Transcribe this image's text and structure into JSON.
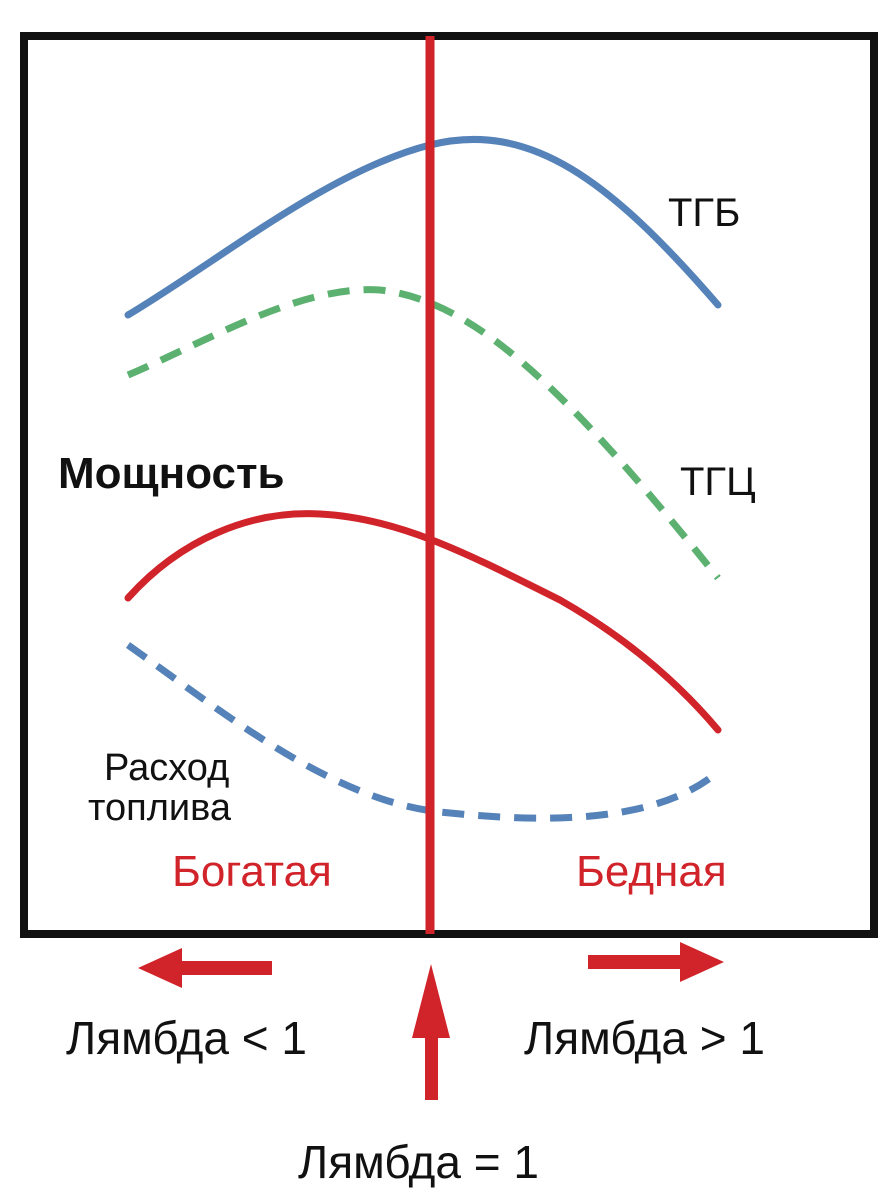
{
  "diagram": {
    "curves": {
      "tgb": {
        "label": "ТГБ",
        "color": "#5582b8",
        "style": "solid"
      },
      "tgc": {
        "label": "ТГЦ",
        "color": "#5cb170",
        "style": "dashed"
      },
      "power": {
        "label": "Мощность",
        "color": "#d1232a",
        "style": "solid"
      },
      "fuel": {
        "label_line1": "Расход",
        "label_line2": "топлива",
        "color": "#5582b8",
        "style": "dashed"
      }
    },
    "zones": {
      "rich": "Богатая",
      "lean": "Бедная"
    },
    "lambda": {
      "less": "Лямбда < 1",
      "greater": "Лямбда > 1",
      "equal": "Лямбда = 1"
    },
    "colors": {
      "frame": "#111111",
      "accent": "#d1232a",
      "text": "#111111"
    }
  }
}
